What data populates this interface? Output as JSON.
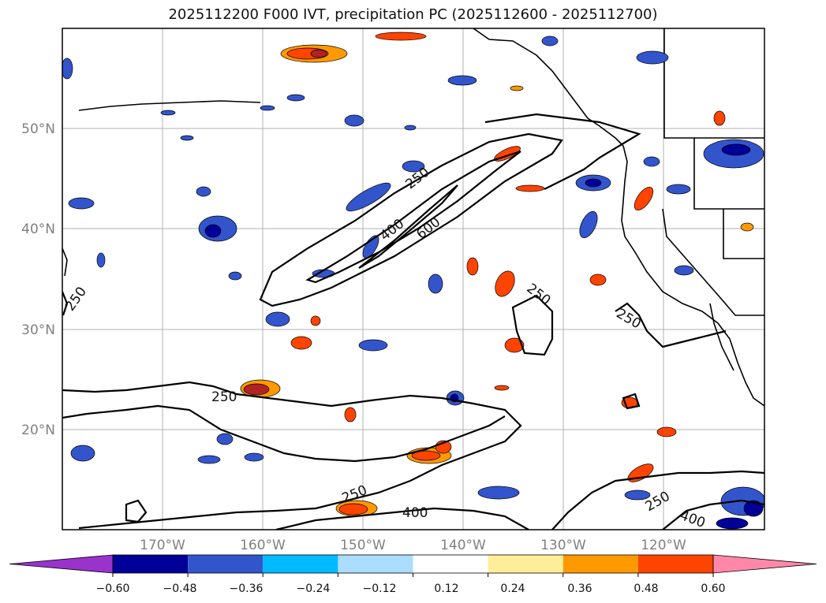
{
  "title": "2025112200 F000 IVT, precipitation PC (2025112600 - 2025112700)",
  "map": {
    "lon_ticks": [
      "170°W",
      "160°W",
      "150°W",
      "140°W",
      "130°W",
      "120°W"
    ],
    "lat_ticks": [
      "50°N",
      "40°N",
      "30°N",
      "20°N"
    ],
    "contour_levels": [
      "250",
      "400",
      "600"
    ]
  },
  "colorbar": {
    "ticks": [
      "−0.60",
      "−0.48",
      "−0.36",
      "−0.24",
      "−0.12",
      "0.12",
      "0.24",
      "0.36",
      "0.48",
      "0.60"
    ],
    "colors": [
      "#9933cc",
      "#000099",
      "#3355cc",
      "#00bbff",
      "#aaddff",
      "#ffffff",
      "#ffee99",
      "#ff9900",
      "#ff4400",
      "#b22222",
      "#ff88aa"
    ]
  },
  "chart_data": {
    "type": "heatmap",
    "title": "2025112200 F000 IVT, precipitation PC (2025112600 - 2025112700)",
    "xlabel": "",
    "ylabel": "",
    "x_range": [
      -180,
      -110
    ],
    "y_range": [
      10,
      60
    ],
    "contour_levels": [
      250,
      400,
      600
    ],
    "color_levels": [
      -0.6,
      -0.48,
      -0.36,
      -0.24,
      -0.12,
      0.12,
      0.24,
      0.36,
      0.48,
      0.6
    ]
  }
}
